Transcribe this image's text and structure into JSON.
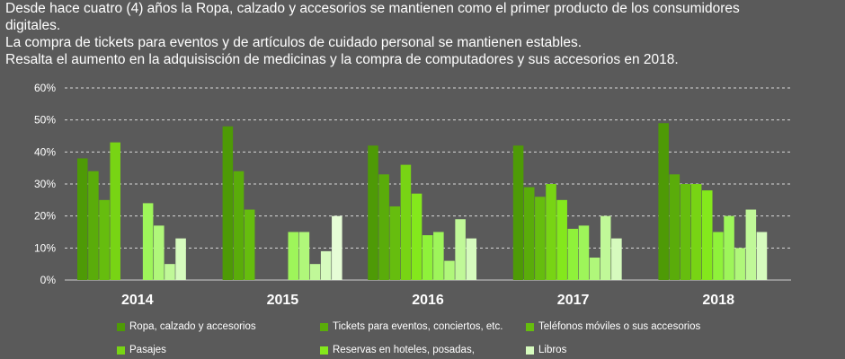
{
  "caption": {
    "line1": "Desde hace cuatro (4) años la Ropa, calzado y accesorios se mantienen como el primer producto de los consumidores",
    "line2": "digitales.",
    "line3": "La compra de tickets para eventos y de artículos de cuidado personal se mantienen estables.",
    "line4": "Resalta el aumento en la  adquisisción de medicinas y la compra de computadores y sus accesorios en 2018."
  },
  "chart_data": {
    "type": "bar",
    "categories": [
      "2014",
      "2015",
      "2016",
      "2017",
      "2018"
    ],
    "ylim": [
      0,
      60
    ],
    "yticks": [
      "0%",
      "10%",
      "20%",
      "30%",
      "40%",
      "50%",
      "60%"
    ],
    "grid": true,
    "legend_position": "bottom",
    "series": [
      {
        "name": "Ropa, calzado y accesorios",
        "color": "#4e9a06",
        "values": [
          38,
          48,
          42,
          42,
          49
        ]
      },
      {
        "name": "Tickets para eventos, conciertos, etc.",
        "color": "#5aac0a",
        "values": [
          34,
          34,
          33,
          29,
          33
        ]
      },
      {
        "name": "Teléfonos móviles o sus accesorios",
        "color": "#66bd0e",
        "values": [
          25,
          22,
          23,
          26,
          30
        ]
      },
      {
        "name": "Pasajes",
        "color": "#78d414",
        "values": [
          43,
          null,
          36,
          30,
          30
        ]
      },
      {
        "name": "Reservas en hoteles, posadas,",
        "color": "#84e81c",
        "values": [
          null,
          null,
          27,
          25,
          28
        ]
      },
      {
        "name": "",
        "color": "#8ff23a",
        "values": [
          null,
          null,
          14,
          16,
          15
        ]
      },
      {
        "name": "",
        "color": "#9ef55a",
        "values": [
          24,
          15,
          15,
          17,
          20
        ]
      },
      {
        "name": "",
        "color": "#b0f77a",
        "values": [
          17,
          15,
          6,
          7,
          10
        ]
      },
      {
        "name": "",
        "color": "#c0f898",
        "values": [
          5,
          5,
          19,
          20,
          22
        ]
      },
      {
        "name": "Libros",
        "color": "#d6fbbe",
        "values": [
          13,
          9,
          13,
          13,
          15
        ]
      },
      {
        "name": "",
        "color": "#e6fdd6",
        "values": [
          null,
          20,
          null,
          null,
          null
        ]
      }
    ]
  },
  "legend": [
    {
      "label": "Ropa, calzado y accesorios",
      "color": "#4e9a06"
    },
    {
      "label": "Tickets para eventos, conciertos, etc.",
      "color": "#5aac0a"
    },
    {
      "label": "Teléfonos móviles o sus accesorios",
      "color": "#66bd0e"
    },
    {
      "label": "Pasajes",
      "color": "#78d414"
    },
    {
      "label": "Reservas en hoteles, posadas,",
      "color": "#84e81c"
    },
    {
      "label": "Libros",
      "color": "#d6fbbe"
    }
  ]
}
